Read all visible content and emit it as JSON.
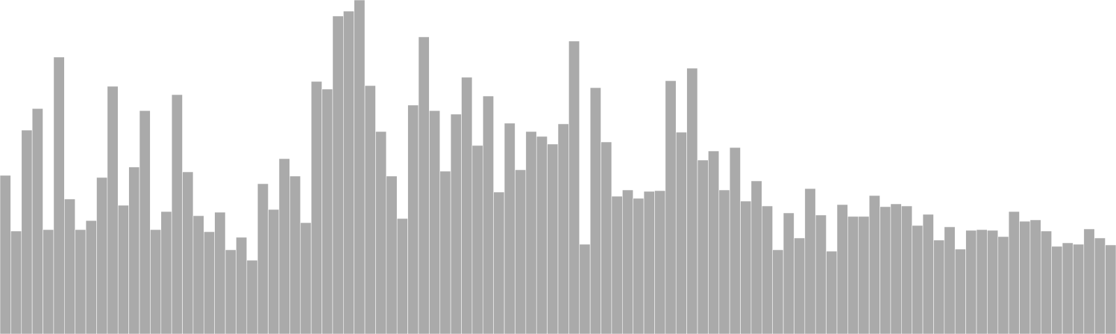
{
  "chart_data": {
    "type": "bar",
    "title": "",
    "xlabel": "",
    "ylabel": "",
    "ylim": [
      0,
      480
    ],
    "bar_color": "#aaaaaa",
    "bar_edge_color": "#ffffff",
    "background": "#ffffff",
    "grid": false,
    "values": [
      228,
      148,
      293,
      324,
      150,
      398,
      194,
      150,
      163,
      225,
      356,
      185,
      240,
      321,
      150,
      176,
      344,
      233,
      170,
      147,
      175,
      121,
      139,
      106,
      216,
      179,
      252,
      227,
      160,
      363,
      352,
      457,
      464,
      480,
      357,
      291,
      227,
      166,
      329,
      427,
      321,
      234,
      316,
      369,
      271,
      342,
      204,
      303,
      236,
      291,
      284,
      273,
      302,
      421,
      129,
      354,
      276,
      198,
      207,
      195,
      205,
      206,
      364,
      290,
      382,
      250,
      263,
      207,
      268,
      191,
      220,
      184,
      121,
      174,
      138,
      209,
      171,
      119,
      186,
      169,
      169,
      199,
      183,
      187,
      184,
      156,
      172,
      135,
      154,
      122,
      149,
      150,
      149,
      140,
      176,
      162,
      164,
      148,
      126,
      131,
      129,
      151,
      138,
      128
    ]
  }
}
